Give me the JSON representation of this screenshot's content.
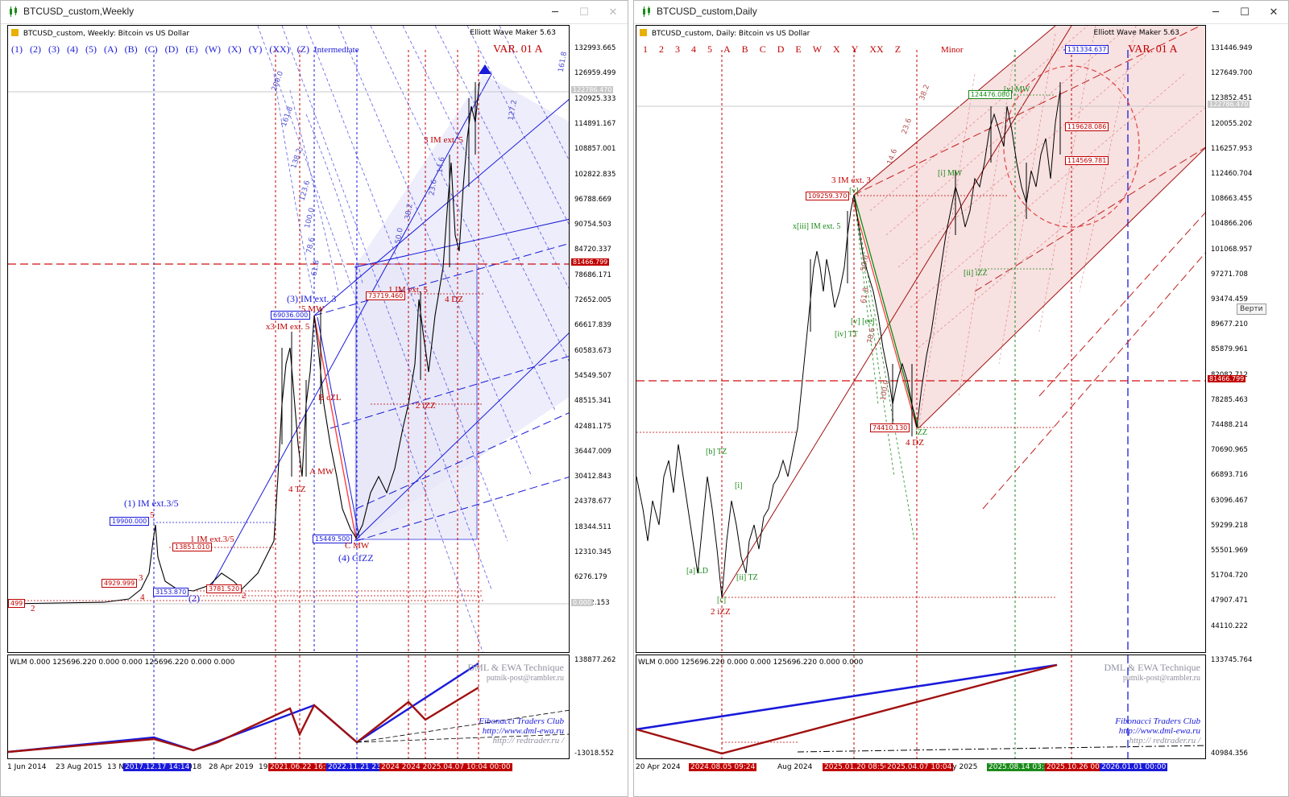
{
  "left": {
    "window_title": "BTCUSD_custom,Weekly",
    "chart_header": "BTCUSD_custom, Weekly:  Bitcoin vs US Dollar",
    "indicator": "Elliott Wave Maker 5.63",
    "variant": "VAR. 01 A",
    "degree": "Intermediate",
    "wave_buttons": [
      "(1)",
      "(2)",
      "(3)",
      "(4)",
      "(5)",
      "(A)",
      "(B)",
      "(C)",
      "(D)",
      "(E)",
      "(W)",
      "(X)",
      "(Y)",
      "(XX)",
      "(Z)"
    ],
    "price_axis": [
      "132993.665",
      "126959.499",
      "120925.333",
      "114891.167",
      "108857.001",
      "102822.835",
      "96788.669",
      "90754.503",
      "84720.337",
      "78686.171",
      "72652.005",
      "66617.839",
      "60583.673",
      "54549.507",
      "48515.341",
      "42481.175",
      "36447.009",
      "30412.843",
      "24378.677",
      "18344.511",
      "12310.345",
      "6276.179",
      "-5792.153"
    ],
    "current_price": "122786.470",
    "hline_price": "81466.799",
    "zero_label": "0.000",
    "price_boxes": [
      "69036.000",
      "19900.000",
      "15449.500",
      "13851.010",
      "4929.999",
      "3153.870",
      "3781.520",
      "73719.460",
      "499"
    ],
    "wave_labels": {
      "w1_ext": "(1) IM ext.3/5",
      "w3_ext": "(3) IM ext. 3",
      "x3": "x3 IM ext. 5",
      "w5mw": "5 MW",
      "w4": "(4) CfZZ",
      "cmw": "C MW",
      "w1im": "1 IM ext.3/5",
      "w3im": "3 IM ext. 5",
      "w1im2": "1 IM ext. 5",
      "w4dz": "4 DZ",
      "w2izz": "2 iZZ",
      "b_zl": "B cZL",
      "a_mw": "A MW",
      "w4tz": "4 TZ",
      "n5": "5",
      "n3": "3",
      "n4": "4",
      "n2": "2",
      "n2b": "2",
      "w2": "(2)"
    },
    "fib_labels": [
      "200.0",
      "161.8",
      "138.2",
      "123.6",
      "100.0",
      "78.6",
      "61.8",
      "50.0",
      "38.2",
      "23.6",
      "14.6",
      "127.2",
      "161.8"
    ],
    "sub_header": "WLM 0.000  125696.220  0.000  0.000  125696.220  0.000  0.000",
    "sub_axis": [
      "138877.262",
      "-13018.552"
    ],
    "credits": {
      "title": "DML & EWA Technique",
      "email": "putnik-post@rambler.ru",
      "fib": "Fibonacci   Traders   Club",
      "url1": "http://www.dml-ewa.ru",
      "url2": "http:// redtrader.ru /"
    },
    "time_axis": [
      "1 Jun 2014",
      "23 Aug 2015",
      "13 N",
      "018",
      "28 Apr 2019",
      "19"
    ],
    "time_tags": [
      {
        "text": "2017.12.17 14:14",
        "color": "#1a1adb"
      },
      {
        "text": "2021.06.22 16:55",
        "color": "#c00000"
      },
      {
        "text": "2022.11.21 23:0",
        "color": "#1a1adb"
      },
      {
        "text": "2024 2024 2025.04.07 10:04 00:00",
        "color": "#c00000"
      }
    ]
  },
  "right": {
    "window_title": "BTCUSD_custom,Daily",
    "chart_header": "BTCUSD_custom, Daily:  Bitcoin vs US Dollar",
    "indicator": "Elliott Wave Maker 5.63",
    "variant": "VAR. 01 A",
    "degree": "Minor",
    "wave_buttons": [
      "1",
      "2",
      "3",
      "4",
      "5",
      "A",
      "B",
      "C",
      "D",
      "E",
      "W",
      "X",
      "Y",
      "XX",
      "Z"
    ],
    "price_axis": [
      "131446.949",
      "127649.700",
      "123852.451",
      "120055.202",
      "116257.953",
      "112460.704",
      "108663.455",
      "104866.206",
      "101068.957",
      "97271.708",
      "93474.459",
      "89677.210",
      "85879.961",
      "82082.712",
      "78285.463",
      "74488.214",
      "70690.965",
      "66893.716",
      "63096.467",
      "59299.218",
      "55501.969",
      "51704.720",
      "47907.471",
      "44110.222"
    ],
    "current_price": "122786.470",
    "hline_price": "81466.799",
    "tooltip": "Верти",
    "price_boxes": [
      "131334.637",
      "124476.080",
      "119628.086",
      "114569.781",
      "109259.370",
      "74410.130"
    ],
    "wave_labels": {
      "w3": "3 IM ext. 3",
      "xiii": "x[iii] IM ext. 5",
      "imw": "[i] MW",
      "iizz": "[ii] iZZ",
      "ivtt": "[iv] TT",
      "veze": "[v]  [ee]",
      "w4dz": "4 DZ",
      "izz": "iZZ",
      "btz": "[b] TZ",
      "i": "[i]",
      "ald": "[a] LD",
      "iitz": "[ii] TZ",
      "c": "[c]",
      "w2izz": "2 iZZ",
      "mw": "[v] MW",
      "vv": "[v]"
    },
    "fib_labels": [
      "38.2",
      "23.6",
      "14.6",
      "50.0",
      "61.8",
      "78.6",
      "100.0"
    ],
    "sub_header": "WLM 0.000  125696.220  0.000  0.000  125696.220  0.000  0.000",
    "sub_axis": [
      "133745.764",
      "40984.356"
    ],
    "credits": {
      "title": "DML & EWA Technique",
      "email": "putnik-post@rambler.ru",
      "fib": "Fibonacci   Traders   Club",
      "url1": "http://www.dml-ewa.ru",
      "url2": "http:// redtrader.ru /"
    },
    "time_axis": [
      "20 Apr 2024",
      "Aug 2024",
      "29 Oct 202",
      "May 2025"
    ],
    "time_tags": [
      {
        "text": "2024.08.05 09:24",
        "color": "#c00000"
      },
      {
        "text": "2025.01.20 08:56",
        "color": "#c00000"
      },
      {
        "text": "2025.04.07 10:04",
        "color": "#c00000"
      },
      {
        "text": "2025.08.14 03:32",
        "color": "#1a8a1a"
      },
      {
        "text": "2025.10.26 00:0",
        "color": "#c00000"
      },
      {
        "text": "2026.01.01 00:00",
        "color": "#1a1adb"
      }
    ]
  },
  "colors": {
    "blue": "#1a1adb",
    "red": "#c00000",
    "green": "#1a8a1a",
    "hline": "#d01010",
    "pink": "#f6dada",
    "lilac": "#e8e8fa"
  }
}
